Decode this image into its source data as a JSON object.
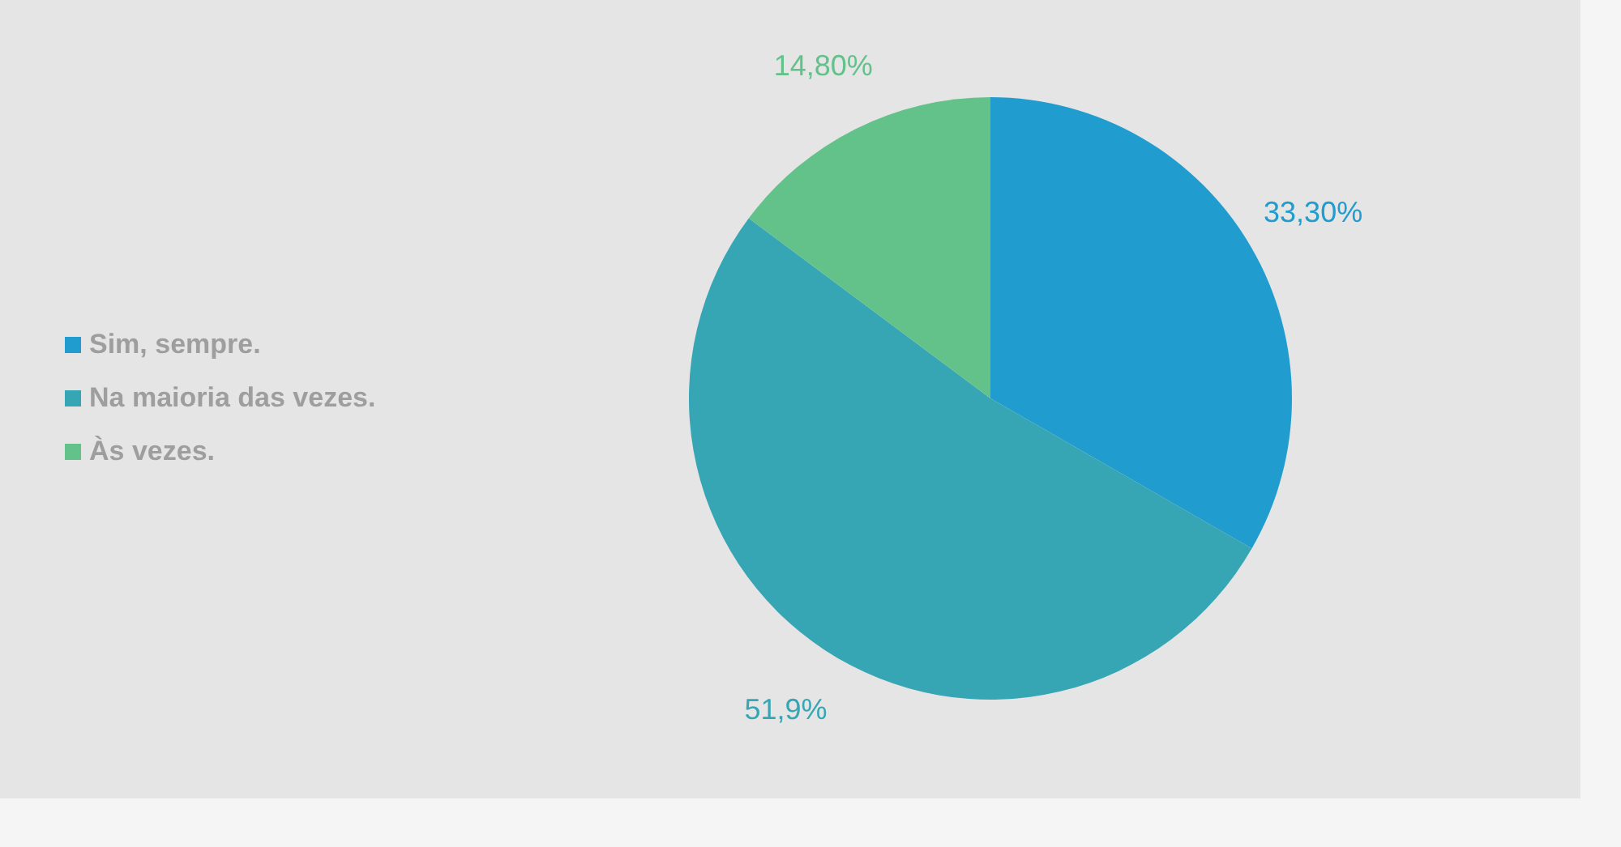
{
  "chart_data": {
    "type": "pie",
    "categories": [
      "Sim, sempre.",
      "Na maioria das vezes.",
      "Às vezes."
    ],
    "values": [
      33.3,
      51.9,
      14.8
    ],
    "colors": [
      "#219ccf",
      "#36a6b5",
      "#63c18a"
    ],
    "value_labels": [
      "33,30%",
      "51,9%",
      "14,80%"
    ],
    "legend": "left"
  }
}
